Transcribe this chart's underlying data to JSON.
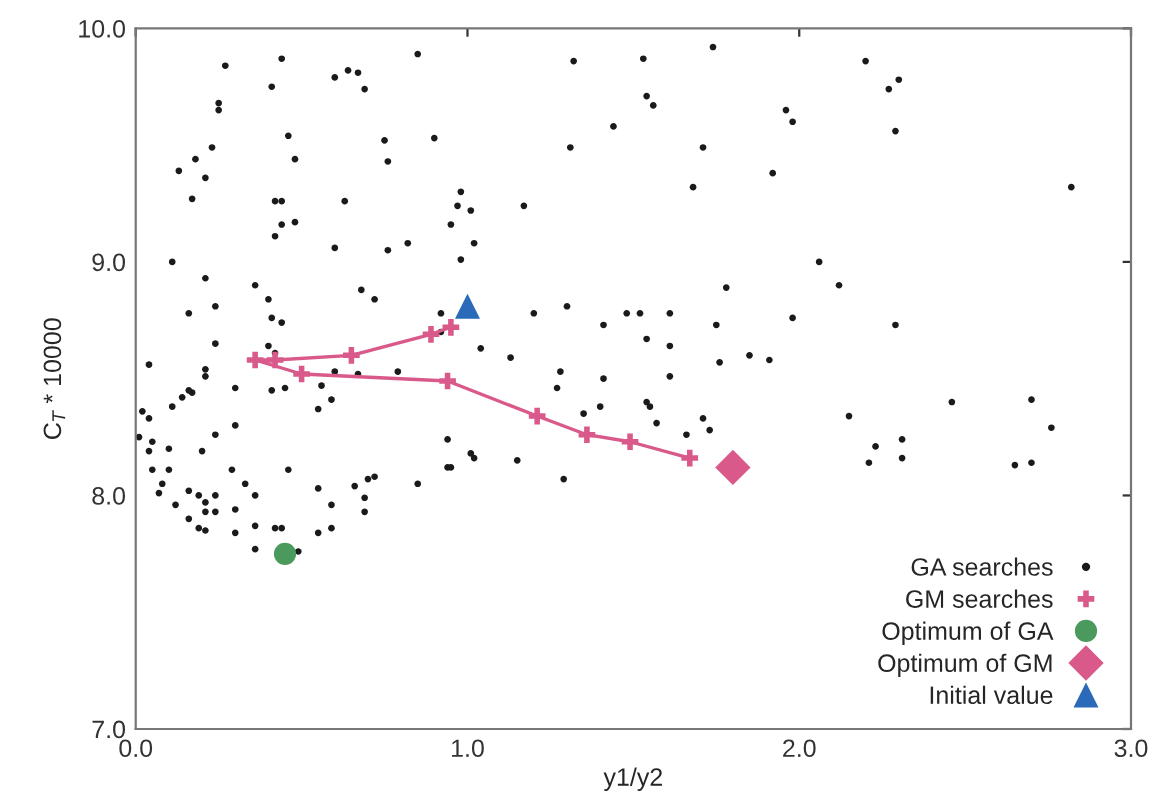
{
  "chart_data": {
    "type": "scatter",
    "xlabel": "y1/y2",
    "ylabel": "C$_{T}$ * 10000",
    "xlim": [
      0,
      3
    ],
    "ylim": [
      7,
      10
    ],
    "xticks": [
      {
        "value": 0,
        "label": "0.0"
      },
      {
        "value": 1,
        "label": "1.0"
      },
      {
        "value": 2,
        "label": "2.0"
      },
      {
        "value": 3,
        "label": "3.0"
      }
    ],
    "yticks": [
      {
        "value": 7,
        "label": "7.0"
      },
      {
        "value": 8,
        "label": "8.0"
      },
      {
        "value": 9,
        "label": "9.0"
      },
      {
        "value": 10,
        "label": "10.0"
      }
    ],
    "grid": false,
    "legend": "bottom right",
    "series": [
      {
        "name": "GA searches",
        "marker": "circle",
        "color": "#1a1a1a",
        "x": [
          0.27,
          0.44,
          0.85,
          0.64,
          0.67,
          0.6,
          0.69,
          0.41,
          0.25,
          0.25,
          0.46,
          0.75,
          0.9,
          0.76,
          0.48,
          0.23,
          0.18,
          0.13,
          0.21,
          0.17,
          0.42,
          0.44,
          0.63,
          0.98,
          0.97,
          1.01,
          0.48,
          0.44,
          0.42,
          0.95,
          1.02,
          0.6,
          0.76,
          0.82,
          0.11,
          0.98,
          0.21,
          0.36,
          0.68,
          0.72,
          0.4,
          0.24,
          0.16,
          0.41,
          0.44,
          0.92,
          0.92,
          0.24,
          1.04,
          1.13,
          1.2,
          1.3,
          1.41,
          1.48,
          1.17,
          1.31,
          1.32,
          1.44,
          0.4,
          0.42,
          0.21,
          0.21,
          0.04,
          0.6,
          0.67,
          0.79,
          1.28,
          1.41,
          0.16,
          1.53,
          1.74,
          2.2,
          2.27,
          2.3,
          1.54,
          1.56,
          1.96,
          1.98,
          2.29,
          1.71,
          1.92,
          1.68,
          2.82,
          2.06,
          2.12,
          1.78,
          1.52,
          1.61,
          1.75,
          1.98,
          2.29,
          1.54,
          1.61,
          1.76,
          1.85,
          1.91,
          1.61,
          0.17,
          0.14,
          0.11,
          0.02,
          0.04,
          0.01,
          0.05,
          0.1,
          0.04,
          0.2,
          0.24,
          0.3,
          0.3,
          0.41,
          0.45,
          0.56,
          0.59,
          0.55,
          0.05,
          0.1,
          0.08,
          0.07,
          0.12,
          0.16,
          0.19,
          0.21,
          0.21,
          0.24,
          0.24,
          0.29,
          0.3,
          0.33,
          0.36,
          0.16,
          0.19,
          0.21,
          0.3,
          0.36,
          0.42,
          0.44,
          0.36,
          0.49,
          0.46,
          0.55,
          0.59,
          0.55,
          0.59,
          0.66,
          0.7,
          0.72,
          0.69,
          0.69,
          0.85,
          0.94,
          0.94,
          0.95,
          1.01,
          1.02,
          1.15,
          1.29,
          1.27,
          1.35,
          1.4,
          1.54,
          1.55,
          1.57,
          1.66,
          1.71,
          1.73,
          2.15,
          2.23,
          2.21,
          2.31,
          2.31,
          2.46,
          2.7,
          2.76,
          2.65,
          2.7
        ],
        "values": [
          9.84,
          9.87,
          9.89,
          9.82,
          9.81,
          9.79,
          9.74,
          9.75,
          9.68,
          9.65,
          9.54,
          9.52,
          9.53,
          9.43,
          9.44,
          9.49,
          9.44,
          9.39,
          9.36,
          9.27,
          9.26,
          9.26,
          9.26,
          9.3,
          9.24,
          9.22,
          9.17,
          9.16,
          9.11,
          9.16,
          9.08,
          9.06,
          9.05,
          9.08,
          9.0,
          9.01,
          8.93,
          8.9,
          8.88,
          8.84,
          8.84,
          8.81,
          8.78,
          8.76,
          8.74,
          8.78,
          8.7,
          8.65,
          8.63,
          8.59,
          8.78,
          8.81,
          8.73,
          8.78,
          9.24,
          9.49,
          9.86,
          9.58,
          8.64,
          8.61,
          8.54,
          8.51,
          8.56,
          8.53,
          8.52,
          8.53,
          8.53,
          8.5,
          8.45,
          9.87,
          9.92,
          9.86,
          9.74,
          9.78,
          9.71,
          9.67,
          9.65,
          9.6,
          9.56,
          9.49,
          9.38,
          9.32,
          9.32,
          9.0,
          8.9,
          8.89,
          8.78,
          8.78,
          8.73,
          8.76,
          8.73,
          8.67,
          8.64,
          8.57,
          8.6,
          8.58,
          8.51,
          8.44,
          8.42,
          8.38,
          8.36,
          8.33,
          8.25,
          8.23,
          8.2,
          8.19,
          8.19,
          8.26,
          8.3,
          8.46,
          8.45,
          8.46,
          8.47,
          8.41,
          8.37,
          8.11,
          8.11,
          8.05,
          8.01,
          7.96,
          8.02,
          8.0,
          7.97,
          7.93,
          8.0,
          7.93,
          8.11,
          7.94,
          8.05,
          8.0,
          7.9,
          7.86,
          7.85,
          7.84,
          7.87,
          7.86,
          7.86,
          7.77,
          7.76,
          8.11,
          8.03,
          7.96,
          7.84,
          7.86,
          8.04,
          8.07,
          8.08,
          7.99,
          7.93,
          8.05,
          8.24,
          8.12,
          8.12,
          8.18,
          8.16,
          8.15,
          8.07,
          8.46,
          8.35,
          8.38,
          8.4,
          8.38,
          8.31,
          8.26,
          8.33,
          8.28,
          8.34,
          8.21,
          8.14,
          8.24,
          8.16,
          8.4,
          8.41,
          8.29,
          8.13,
          8.14
        ]
      },
      {
        "name": "GM searches",
        "type": "line",
        "marker": "cross",
        "line_style": "solid",
        "color": "#d9598a",
        "x": [
          0.95,
          0.89,
          0.65,
          0.42,
          0.36,
          0.5,
          0.94,
          1.21,
          1.36,
          1.49,
          1.67
        ],
        "values": [
          8.72,
          8.69,
          8.6,
          8.58,
          8.58,
          8.52,
          8.49,
          8.34,
          8.26,
          8.23,
          8.16
        ]
      },
      {
        "name": "Optimum of GA",
        "type": "scatter",
        "marker": "circle",
        "color": "#4a9a5e",
        "x": [
          0.45
        ],
        "values": [
          7.75
        ]
      },
      {
        "name": "Optimum of GM",
        "type": "scatter",
        "marker": "diamond",
        "color": "#d9598a",
        "x": [
          1.8
        ],
        "values": [
          8.12
        ]
      },
      {
        "name": "Initial value",
        "type": "scatter",
        "marker": "triangle",
        "color": "#2a6ab8",
        "x": [
          1.0
        ],
        "values": [
          8.81
        ]
      }
    ]
  }
}
